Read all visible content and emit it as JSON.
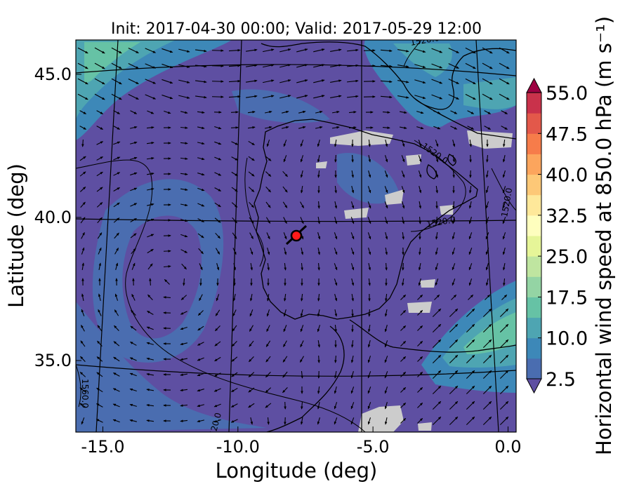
{
  "chart_data": {
    "type": "heatmap",
    "title": "Init: 2017-04-30 00:00; Valid: 2017-05-29 12:00",
    "xlabel": "Longitude (deg)",
    "ylabel": "Latitude (deg)",
    "xlim": [
      -16.0,
      0.3
    ],
    "ylim": [
      32.5,
      46.2
    ],
    "x_ticks": [
      {
        "value": -15.0,
        "label": "-15.0"
      },
      {
        "value": -10.0,
        "label": "-10.0"
      },
      {
        "value": -5.0,
        "label": "-5.0"
      },
      {
        "value": 0.0,
        "label": "0.0"
      }
    ],
    "y_ticks": [
      {
        "value": 35.0,
        "label": "35.0"
      },
      {
        "value": 40.0,
        "label": "40.0"
      },
      {
        "value": 45.0,
        "label": "45.0"
      }
    ],
    "colorbar": {
      "label": "Horizontal wind speed at 850.0 hPa (m s⁻¹)",
      "min": 2.5,
      "max": 55.0,
      "extend": "both",
      "ticks": [
        {
          "value": 2.5,
          "label": "2.5"
        },
        {
          "value": 10.0,
          "label": "10.0"
        },
        {
          "value": 17.5,
          "label": "17.5"
        },
        {
          "value": 25.0,
          "label": "25.0"
        },
        {
          "value": 32.5,
          "label": "32.5"
        },
        {
          "value": 40.0,
          "label": "40.0"
        },
        {
          "value": 47.5,
          "label": "47.5"
        },
        {
          "value": 55.0,
          "label": "55.0"
        }
      ],
      "colors": [
        "#5e4fa2",
        "#4a6db0",
        "#3d88b8",
        "#4ea5b2",
        "#66c2a5",
        "#94d4a4",
        "#bfe5a0",
        "#e6f598",
        "#fefebe",
        "#fee89a",
        "#fdc877",
        "#fca55d",
        "#f67c4a",
        "#e3584a",
        "#c9324b",
        "#9e0142"
      ]
    },
    "contours": [
      {
        "label": "1520.0"
      },
      {
        "label": "1520.0"
      },
      {
        "label": "1520.0"
      },
      {
        "label": "1520.0"
      },
      {
        "label": "1520.0"
      },
      {
        "label": "1560.0"
      }
    ],
    "marker": {
      "lon": -7.7,
      "lat": 39.3,
      "color": "#ff1a1a"
    },
    "missing_color": "#cccccc",
    "land_color": "#000000"
  }
}
